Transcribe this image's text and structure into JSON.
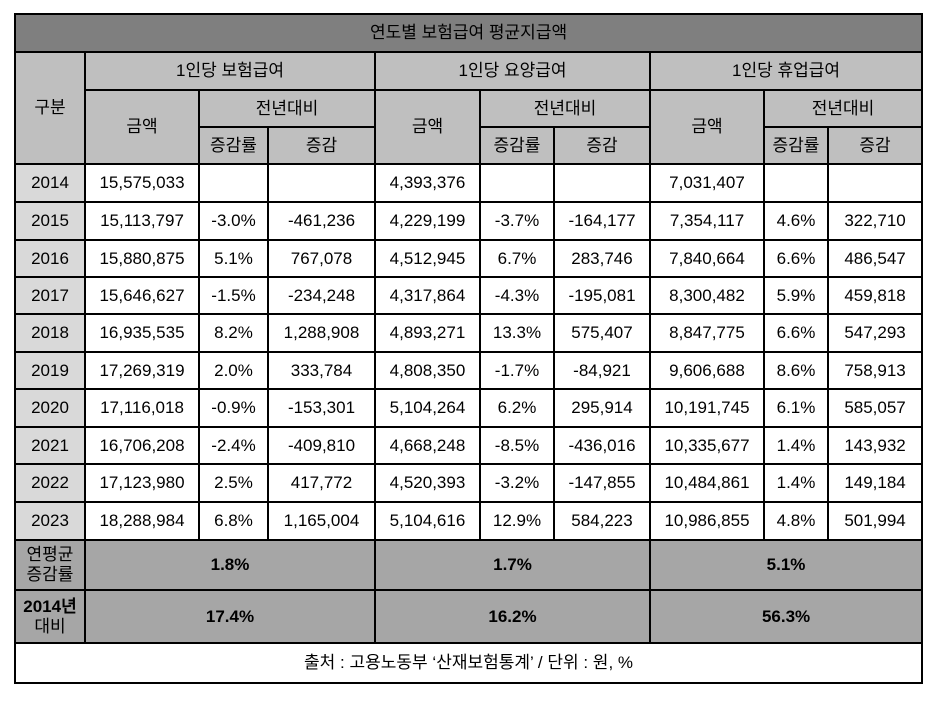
{
  "title": "연도별 보험급여 평균지급액",
  "header": {
    "category": "구분",
    "groups": [
      "1인당 보험급여",
      "1인당 요양급여",
      "1인당 휴업급여"
    ],
    "amount": "금액",
    "yoy": "전년대비",
    "rate": "증감률",
    "change": "증감"
  },
  "rows": [
    {
      "year": "2014",
      "cells": [
        "15,575,033",
        "",
        "",
        "4,393,376",
        "",
        "",
        "7,031,407",
        "",
        ""
      ]
    },
    {
      "year": "2015",
      "cells": [
        "15,113,797",
        "-3.0%",
        "-461,236",
        "4,229,199",
        "-3.7%",
        "-164,177",
        "7,354,117",
        "4.6%",
        "322,710"
      ]
    },
    {
      "year": "2016",
      "cells": [
        "15,880,875",
        "5.1%",
        "767,078",
        "4,512,945",
        "6.7%",
        "283,746",
        "7,840,664",
        "6.6%",
        "486,547"
      ]
    },
    {
      "year": "2017",
      "cells": [
        "15,646,627",
        "-1.5%",
        "-234,248",
        "4,317,864",
        "-4.3%",
        "-195,081",
        "8,300,482",
        "5.9%",
        "459,818"
      ]
    },
    {
      "year": "2018",
      "cells": [
        "16,935,535",
        "8.2%",
        "1,288,908",
        "4,893,271",
        "13.3%",
        "575,407",
        "8,847,775",
        "6.6%",
        "547,293"
      ]
    },
    {
      "year": "2019",
      "cells": [
        "17,269,319",
        "2.0%",
        "333,784",
        "4,808,350",
        "-1.7%",
        "-84,921",
        "9,606,688",
        "8.6%",
        "758,913"
      ]
    },
    {
      "year": "2020",
      "cells": [
        "17,116,018",
        "-0.9%",
        "-153,301",
        "5,104,264",
        "6.2%",
        "295,914",
        "10,191,745",
        "6.1%",
        "585,057"
      ]
    },
    {
      "year": "2021",
      "cells": [
        "16,706,208",
        "-2.4%",
        "-409,810",
        "4,668,248",
        "-8.5%",
        "-436,016",
        "10,335,677",
        "1.4%",
        "143,932"
      ]
    },
    {
      "year": "2022",
      "cells": [
        "17,123,980",
        "2.5%",
        "417,772",
        "4,520,393",
        "-3.2%",
        "-147,855",
        "10,484,861",
        "1.4%",
        "149,184"
      ]
    },
    {
      "year": "2023",
      "cells": [
        "18,288,984",
        "6.8%",
        "1,165,004",
        "5,104,616",
        "12.9%",
        "584,223",
        "10,986,855",
        "4.8%",
        "501,994"
      ]
    }
  ],
  "summary": [
    {
      "label_line1": "연평균",
      "label_line2": "증감률",
      "values": [
        "1.8%",
        "1.7%",
        "5.1%"
      ]
    },
    {
      "label_line1": "2014년",
      "label_line2": "대비",
      "values": [
        "17.4%",
        "16.2%",
        "56.3%"
      ]
    }
  ],
  "footer": "출처 : 고용노동부 ‘산재보험통계’ / 단위 : 원, %",
  "colors": {
    "title_bg": "#7f7f7f",
    "header_bg": "#bfbfbf",
    "year_bg": "#d9d9d9",
    "summary_bg": "#a6a6a6",
    "border": "#000000"
  }
}
